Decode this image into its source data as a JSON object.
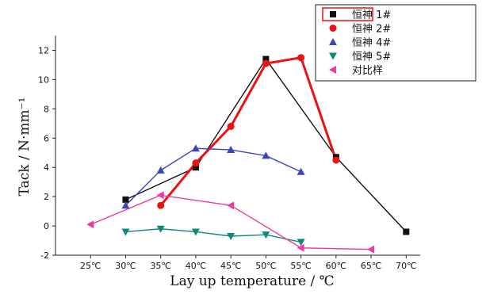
{
  "chart_data": {
    "type": "line",
    "xlabel": "Lay up temperature / ℃",
    "ylabel": "Tack / N·mm⁻¹",
    "categories": [
      "25℃",
      "30℃",
      "35℃",
      "40℃",
      "45℃",
      "50℃",
      "55℃",
      "60℃",
      "65℃",
      "70℃"
    ],
    "x_values": [
      25,
      30,
      35,
      40,
      45,
      50,
      55,
      60,
      65,
      70
    ],
    "xlim": [
      20,
      72
    ],
    "ylim": [
      -2,
      13
    ],
    "yticks": [
      -2,
      0,
      2,
      4,
      6,
      8,
      10,
      12
    ],
    "grid": false,
    "legend_position": "top-right",
    "series": [
      {
        "name": "恒神 1#",
        "color": "#111111",
        "marker": "square",
        "highlighted": true,
        "points": [
          [
            30,
            1.8
          ],
          [
            40,
            4.0
          ],
          [
            50,
            11.4
          ],
          [
            60,
            4.7
          ],
          [
            70,
            -0.4
          ]
        ]
      },
      {
        "name": "恒神 2#",
        "color": "#ee1111",
        "marker": "circle",
        "points": [
          [
            35,
            1.4
          ],
          [
            40,
            4.3
          ],
          [
            45,
            6.8
          ],
          [
            50,
            11.1
          ],
          [
            55,
            11.5
          ],
          [
            60,
            4.5
          ]
        ]
      },
      {
        "name": "恒神 4#",
        "color": "#3b47b8",
        "marker": "triangle-up",
        "points": [
          [
            30,
            1.4
          ],
          [
            35,
            3.8
          ],
          [
            40,
            5.3
          ],
          [
            45,
            5.2
          ],
          [
            50,
            4.8
          ],
          [
            55,
            3.7
          ]
        ]
      },
      {
        "name": "恒神 5#",
        "color": "#0f8a7a",
        "marker": "triangle-down",
        "points": [
          [
            30,
            -0.4
          ],
          [
            35,
            -0.2
          ],
          [
            40,
            -0.4
          ],
          [
            45,
            -0.7
          ],
          [
            50,
            -0.6
          ],
          [
            55,
            -1.1
          ]
        ]
      },
      {
        "name": "对比样",
        "color": "#ee3aa0",
        "marker": "triangle-left",
        "points": [
          [
            25,
            0.1
          ],
          [
            35,
            2.1
          ],
          [
            45,
            1.4
          ],
          [
            55,
            -1.5
          ],
          [
            65,
            -1.6
          ]
        ]
      }
    ]
  }
}
